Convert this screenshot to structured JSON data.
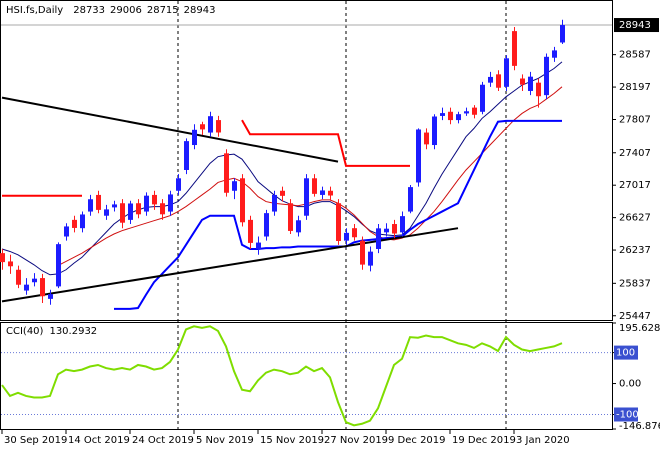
{
  "chart_data": {
    "type": "candlestick",
    "title": "HSI.fs,Daily",
    "categories": [
      "30 Sep 2019",
      null,
      null,
      null,
      null,
      null,
      null,
      null,
      "14 Oct 2019",
      null,
      null,
      null,
      null,
      null,
      null,
      null,
      "24 Oct 2019",
      null,
      null,
      null,
      null,
      null,
      null,
      null,
      "5 Nov 2019",
      null,
      null,
      null,
      null,
      null,
      null,
      null,
      "15 Nov 2019",
      null,
      null,
      null,
      null,
      null,
      null,
      null,
      "27 Nov 2019",
      null,
      null,
      null,
      null,
      null,
      null,
      null,
      "9 Dec 2019",
      null,
      null,
      null,
      null,
      null,
      null,
      null,
      "19 Dec 2019",
      null,
      null,
      null,
      null,
      null,
      null,
      null,
      "3 Jan 2020",
      null,
      null,
      null,
      null,
      null,
      null
    ],
    "open": [
      26200,
      26100,
      26000,
      25750,
      25850,
      25900,
      25650,
      25800,
      26400,
      26600,
      26500,
      26700,
      26900,
      26650,
      26750,
      26800,
      26600,
      26800,
      26700,
      26900,
      26800,
      26700,
      26950,
      27200,
      27500,
      27750,
      27650,
      27800,
      27400,
      26950,
      27100,
      26600,
      26250,
      26400,
      26700,
      26950,
      26800,
      26450,
      26650,
      27100,
      26900,
      26950,
      26800,
      26350,
      26500,
      26350,
      26050,
      26250,
      26450,
      26550,
      26450,
      26700,
      27050,
      27650,
      27500,
      27850,
      27900,
      27800,
      27880,
      27950,
      27900,
      28250,
      28350,
      28200,
      28870,
      28300,
      28150,
      28250,
      28100,
      28550,
      28733
    ],
    "high": [
      26250,
      26180,
      26050,
      25900,
      25960,
      25950,
      25760,
      26330,
      26560,
      26650,
      26700,
      26900,
      26950,
      26780,
      26830,
      26850,
      26830,
      26850,
      26930,
      26950,
      26850,
      26950,
      27150,
      27580,
      27750,
      27780,
      27900,
      27850,
      27450,
      27100,
      27150,
      26650,
      26400,
      26720,
      26950,
      27000,
      26850,
      26650,
      27150,
      27150,
      27000,
      27000,
      26850,
      26500,
      26550,
      26400,
      26280,
      26550,
      26560,
      26600,
      26700,
      27020,
      27700,
      27700,
      27870,
      27950,
      27950,
      27900,
      27950,
      27980,
      28260,
      28380,
      28400,
      28580,
      28920,
      28350,
      28380,
      28300,
      28600,
      28680,
      29006
    ],
    "low": [
      26000,
      25950,
      25780,
      25700,
      25800,
      25600,
      25580,
      25780,
      26350,
      26450,
      26450,
      26650,
      26680,
      26600,
      26700,
      26500,
      26550,
      26620,
      26650,
      26720,
      26600,
      26650,
      26900,
      27150,
      27450,
      27620,
      27600,
      27600,
      26880,
      26850,
      26520,
      26250,
      26180,
      26350,
      26650,
      26820,
      26430,
      26400,
      26600,
      26880,
      26850,
      26830,
      26300,
      26300,
      26350,
      26000,
      25980,
      26200,
      26400,
      26380,
      26400,
      26680,
      27000,
      27450,
      27450,
      27800,
      27750,
      27760,
      27850,
      27820,
      27870,
      28200,
      28150,
      28150,
      28400,
      28150,
      28100,
      27950,
      28050,
      28500,
      28715
    ],
    "close": [
      26092,
      26042,
      25820,
      25821,
      25893,
      25682,
      25707,
      26308,
      26521,
      26503,
      26665,
      26848,
      26720,
      26726,
      26786,
      26566,
      26797,
      26667,
      26891,
      26786,
      26667,
      26906,
      27100,
      27547,
      27683,
      27688,
      27847,
      27651,
      26926,
      27065,
      26571,
      26323,
      26327,
      26681,
      26900,
      26889,
      26467,
      26595,
      27100,
      26913,
      26954,
      26893,
      26346,
      26444,
      26391,
      26062,
      26218,
      26498,
      26494,
      26436,
      26645,
      26994,
      27687,
      27508,
      27843,
      27884,
      27800,
      27871,
      27906,
      27864,
      28225,
      28319,
      28189,
      28543,
      28452,
      28226,
      28322,
      28087,
      28561,
      28638,
      28943
    ],
    "up_color": "#1c1cff",
    "down_color": "#ff1c1c",
    "ylim": [
      25420,
      29220
    ],
    "yticks": [
      28587,
      28197,
      27807,
      27407,
      27017,
      26627,
      26237,
      25837,
      25447
    ],
    "separators": [
      22,
      43,
      63
    ],
    "lines": [
      {
        "color": "#0a0a80",
        "width": 1,
        "values": [
          26250,
          26220,
          26180,
          26120,
          26060,
          25990,
          25940,
          25950,
          26000,
          26080,
          26150,
          26250,
          26350,
          26450,
          26550,
          26620,
          26680,
          26720,
          26750,
          26760,
          26760,
          26780,
          26820,
          26920,
          27040,
          27160,
          27280,
          27360,
          27380,
          27390,
          27330,
          27200,
          27060,
          26980,
          26900,
          26830,
          26790,
          26760,
          26760,
          26800,
          26820,
          26820,
          26770,
          26710,
          26640,
          26550,
          26470,
          26430,
          26420,
          26410,
          26420,
          26500,
          26650,
          26800,
          26980,
          27150,
          27300,
          27450,
          27600,
          27700,
          27820,
          27900,
          27990,
          28080,
          28150,
          28220,
          28260,
          28300,
          28360,
          28420,
          28500
        ]
      },
      {
        "color": "#d01010",
        "width": 1,
        "values": [
          null,
          null,
          null,
          null,
          null,
          null,
          null,
          26050,
          26100,
          26150,
          26200,
          26260,
          26320,
          26380,
          26430,
          26470,
          26500,
          26530,
          26560,
          26590,
          26620,
          26650,
          26700,
          26760,
          26830,
          26900,
          26970,
          27050,
          27080,
          27100,
          27060,
          26980,
          26880,
          26820,
          26800,
          26790,
          26780,
          26770,
          26790,
          26820,
          26840,
          26840,
          26800,
          26740,
          26660,
          26560,
          26460,
          26400,
          26370,
          26360,
          26380,
          26420,
          26500,
          26600,
          26700,
          26820,
          26950,
          27080,
          27200,
          27300,
          27400,
          27500,
          27600,
          27700,
          27800,
          27880,
          27940,
          27980,
          28050,
          28120,
          28200
        ]
      },
      {
        "color": "#0000ff",
        "width": 2,
        "values": [
          null,
          null,
          null,
          null,
          null,
          null,
          null,
          null,
          null,
          null,
          null,
          null,
          null,
          null,
          25530,
          25530,
          25530,
          25540,
          25700,
          25850,
          25950,
          26050,
          26150,
          26300,
          26450,
          26600,
          26650,
          26650,
          26650,
          26650,
          26300,
          26250,
          26250,
          26260,
          26260,
          26270,
          26270,
          26280,
          26280,
          26280,
          26280,
          26280,
          26280,
          26280,
          26330,
          26350,
          26360,
          26370,
          26380,
          26390,
          26400,
          26480,
          26550,
          26600,
          26650,
          26700,
          26750,
          26800,
          27000,
          27200,
          27400,
          27600,
          27780,
          27790,
          27790,
          27790,
          27790,
          27790,
          27790,
          27790,
          27790
        ]
      },
      {
        "color": "#ff0000",
        "width": 2,
        "values": [
          26890,
          26890,
          26890,
          26890,
          26890,
          26890,
          26890,
          26890,
          26890,
          26890,
          26890,
          null,
          null,
          null,
          null,
          null,
          null,
          null,
          null,
          null,
          null,
          null,
          null,
          null,
          null,
          null,
          null,
          null,
          null,
          null,
          27800,
          27630,
          27630,
          27630,
          27630,
          27630,
          27630,
          27630,
          27630,
          27630,
          27630,
          27630,
          27630,
          27250,
          27250,
          27250,
          27250,
          27250,
          27250,
          27250,
          27250,
          27250,
          null,
          null,
          null,
          null,
          null,
          null,
          null,
          null,
          null,
          null,
          null,
          null,
          null,
          null,
          null,
          null,
          null,
          null,
          null
        ]
      }
    ],
    "trendlines": [
      {
        "x": [
          0,
          42
        ],
        "values": [
          28070,
          27300
        ]
      },
      {
        "x": [
          0,
          57
        ],
        "values": [
          25620,
          26500
        ]
      }
    ],
    "cci": {
      "title": "CCI(40)",
      "color": "#7fdd00",
      "values": [
        -5,
        -40,
        -30,
        -40,
        -45,
        -45,
        -40,
        30,
        45,
        40,
        45,
        55,
        60,
        50,
        45,
        50,
        45,
        60,
        55,
        45,
        50,
        70,
        110,
        175,
        185,
        180,
        185,
        170,
        120,
        40,
        -20,
        -25,
        10,
        35,
        45,
        40,
        30,
        35,
        55,
        40,
        50,
        20,
        -60,
        -125,
        -135,
        -130,
        -120,
        -80,
        -10,
        60,
        80,
        150,
        148,
        155,
        150,
        150,
        140,
        130,
        125,
        115,
        130,
        120,
        105,
        150,
        125,
        110,
        105,
        110,
        115,
        120,
        130.2932
      ],
      "ylim": [
        -146.876,
        195.6284
      ],
      "yticks": [
        195.6284,
        100,
        {
          "value": 0,
          "label": "0.00"
        },
        -100,
        -146.876
      ],
      "levels": [
        100,
        -100
      ]
    }
  }
}
